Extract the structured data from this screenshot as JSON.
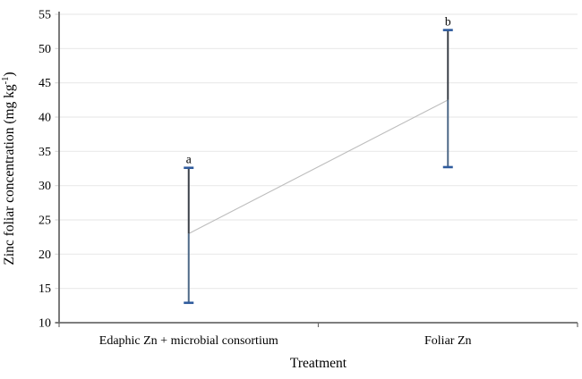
{
  "chart_data": {
    "type": "line",
    "title": "",
    "xlabel": "Treatment",
    "ylabel": "Zinc foliar concentration (mg kg⁻¹)",
    "ylabel_parts": {
      "base": "Zinc foliar concentration (mg kg",
      "superscript": "-1",
      "close": ")"
    },
    "categories": [
      "Edaphic Zn + microbial consortium",
      "Foliar Zn"
    ],
    "series": [
      {
        "values": [
          23.0,
          42.5
        ],
        "error_upper": [
          32.6,
          52.7
        ],
        "error_lower": [
          12.9,
          32.7
        ],
        "sig_letters": [
          "a",
          "b"
        ]
      }
    ],
    "ylim": [
      10,
      55
    ],
    "ytick_step": 5,
    "ytick_labels": [
      "10",
      "15",
      "20",
      "25",
      "30",
      "35",
      "40",
      "45",
      "50",
      "55"
    ],
    "grid": true,
    "legend": false,
    "markers": false,
    "colors": {
      "background": "#ffffff",
      "gridline": "#eaeaea",
      "axis": "#6b6b6b",
      "minor_tick": "#d9d9d9",
      "connector_line": "#bdbdbd",
      "error_bar_upper_segment": "#3b4149",
      "error_bar_lower_segment": "#4e6987",
      "error_bar_cap": "#2f5b9d",
      "text": "#000000"
    }
  }
}
